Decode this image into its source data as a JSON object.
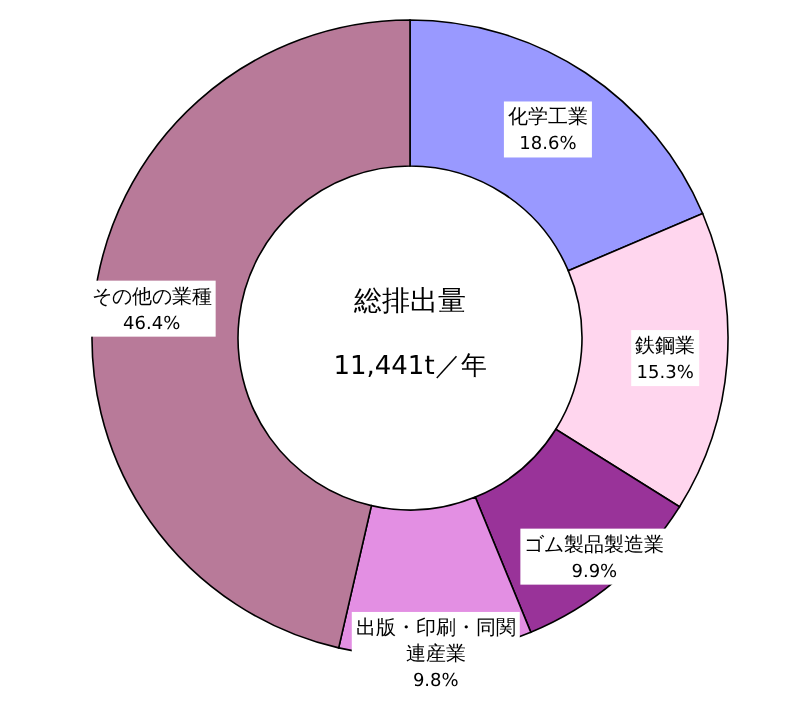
{
  "chart_data": {
    "type": "donut",
    "title": "総排出量",
    "annotations": [
      "11,441t／年"
    ],
    "categories": [
      "化学工業",
      "鉄鋼業",
      "ゴム製品製造業",
      "出版・印刷・同関連産業",
      "その他の業種"
    ],
    "values": [
      18.6,
      15.3,
      9.9,
      9.8,
      46.4
    ],
    "colors": [
      "#9999ff",
      "#ffd6ee",
      "#993399",
      "#e38fe3",
      "#b87a99"
    ],
    "value_labels": [
      "18.6%",
      "15.3%",
      "9.9%",
      "9.8%",
      "46.4%"
    ],
    "legend": false
  }
}
